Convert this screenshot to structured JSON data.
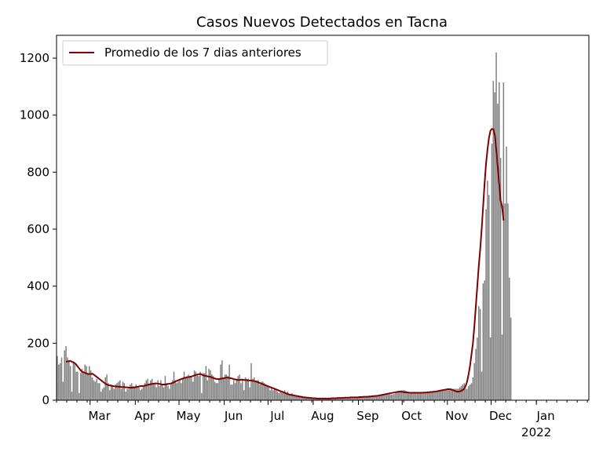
{
  "chart_data": {
    "type": "bar",
    "title": "Casos Nuevos Detectados en Tacna",
    "xlabel": "",
    "ylabel": "",
    "ylim": [
      0,
      1280
    ],
    "yticks": [
      0,
      200,
      400,
      600,
      800,
      1000,
      1200
    ],
    "x_start": "2021-02-06",
    "x_end": "2022-02-06",
    "xticks": [
      {
        "date": "2021-03-01",
        "label": "Mar"
      },
      {
        "date": "2021-04-01",
        "label": "Apr"
      },
      {
        "date": "2021-05-01",
        "label": "May"
      },
      {
        "date": "2021-06-01",
        "label": "Jun"
      },
      {
        "date": "2021-07-01",
        "label": "Jul"
      },
      {
        "date": "2021-08-01",
        "label": "Aug"
      },
      {
        "date": "2021-09-01",
        "label": "Sep"
      },
      {
        "date": "2021-10-01",
        "label": "Oct"
      },
      {
        "date": "2021-11-01",
        "label": "Nov"
      },
      {
        "date": "2021-12-01",
        "label": "Dec"
      },
      {
        "date": "2022-01-01",
        "label": "Jan",
        "sublabel": "2022"
      }
    ],
    "bar_color": "#808080",
    "line_color": "#800000",
    "grid": false,
    "legend_position": "top-left",
    "series": [
      {
        "type": "bar",
        "values": [
          155,
          125,
          130,
          150,
          65,
          175,
          190,
          150,
          140,
          120,
          30,
          135,
          130,
          100,
          100,
          25,
          95,
          110,
          100,
          125,
          120,
          90,
          120,
          105,
          80,
          70,
          65,
          75,
          60,
          60,
          30,
          40,
          45,
          80,
          90,
          60,
          35,
          55,
          50,
          40,
          55,
          60,
          65,
          70,
          40,
          65,
          60,
          30,
          40,
          40,
          55,
          60,
          50,
          45,
          55,
          50,
          45,
          35,
          40,
          50,
          60,
          70,
          75,
          55,
          70,
          75,
          60,
          60,
          45,
          70,
          50,
          70,
          55,
          45,
          85,
          60,
          50,
          40,
          60,
          70,
          100,
          70,
          60,
          65,
          70,
          60,
          75,
          100,
          80,
          85,
          90,
          85,
          80,
          65,
          105,
          100,
          90,
          85,
          100,
          25,
          95,
          95,
          120,
          70,
          110,
          105,
          90,
          85,
          65,
          60,
          60,
          75,
          125,
          140,
          80,
          90,
          90,
          85,
          125,
          55,
          55,
          70,
          60,
          75,
          85,
          90,
          60,
          75,
          35,
          80,
          75,
          75,
          45,
          130,
          75,
          80,
          65,
          70,
          70,
          55,
          65,
          65,
          60,
          55,
          50,
          45,
          35,
          45,
          35,
          40,
          35,
          30,
          25,
          30,
          30,
          25,
          35,
          25,
          30,
          20,
          20,
          25,
          20,
          20,
          15,
          15,
          15,
          15,
          15,
          12,
          10,
          10,
          10,
          10,
          10,
          8,
          8,
          6,
          5,
          5,
          5,
          5,
          5,
          5,
          5,
          6,
          6,
          6,
          7,
          7,
          7,
          7,
          7,
          8,
          8,
          8,
          8,
          8,
          9,
          9,
          9,
          10,
          10,
          10,
          10,
          10,
          10,
          10,
          10,
          12,
          12,
          12,
          12,
          12,
          12,
          13,
          14,
          14,
          15,
          15,
          16,
          17,
          18,
          19,
          20,
          20,
          20,
          20,
          20,
          20,
          20,
          22,
          25,
          28,
          30,
          33,
          35,
          35,
          35,
          33,
          30,
          28,
          28,
          27,
          26,
          26,
          26,
          26,
          26,
          26,
          26,
          26,
          26,
          26,
          27,
          27,
          28,
          28,
          29,
          29,
          30,
          31,
          32,
          33,
          34,
          35,
          37,
          38,
          39,
          40,
          40,
          40,
          40,
          40,
          40,
          40,
          45,
          50,
          55,
          60,
          40,
          40,
          50,
          55,
          60,
          80,
          130,
          180,
          220,
          330,
          320,
          100,
          410,
          420,
          670,
          770,
          720,
          220,
          900,
          1120,
          1080,
          1220,
          1040,
          1115,
          850,
          230,
          1115,
          690,
          890,
          690,
          430,
          290
        ]
      },
      {
        "type": "line",
        "name": "Promedio de los 7 dias anteriores",
        "values": [
          null,
          null,
          null,
          null,
          null,
          null,
          135,
          136,
          137,
          138,
          135,
          133,
          130,
          125,
          118,
          112,
          105,
          100,
          98,
          96,
          94,
          92,
          92,
          92,
          93,
          90,
          86,
          82,
          78,
          74,
          70,
          66,
          62,
          58,
          55,
          53,
          52,
          51,
          50,
          49,
          48,
          48,
          47,
          47,
          46,
          46,
          46,
          45,
          45,
          44,
          44,
          44,
          44,
          45,
          46,
          47,
          48,
          50,
          50,
          50,
          51,
          52,
          54,
          55,
          56,
          57,
          58,
          59,
          59,
          58,
          57,
          56,
          55,
          55,
          55,
          56,
          57,
          58,
          59,
          60,
          63,
          66,
          68,
          70,
          72,
          74,
          76,
          78,
          79,
          80,
          81,
          82,
          83,
          85,
          87,
          89,
          90,
          91,
          92,
          90,
          88,
          86,
          85,
          84,
          83,
          82,
          80,
          78,
          76,
          75,
          74,
          74,
          75,
          76,
          77,
          78,
          79,
          79,
          78,
          77,
          76,
          74,
          73,
          72,
          71,
          71,
          72,
          72,
          71,
          71,
          70,
          70,
          69,
          69,
          68,
          67,
          66,
          64,
          62,
          60,
          58,
          56,
          54,
          52,
          50,
          48,
          46,
          44,
          42,
          40,
          38,
          36,
          34,
          32,
          30,
          28,
          26,
          24,
          22,
          20,
          19,
          18,
          17,
          16,
          15,
          14,
          13,
          12,
          11,
          10,
          10,
          9,
          9,
          8,
          8,
          7,
          7,
          7,
          6,
          6,
          6,
          6,
          6,
          6,
          6,
          6,
          6,
          6,
          7,
          7,
          7,
          7,
          8,
          8,
          8,
          8,
          8,
          9,
          9,
          9,
          9,
          10,
          10,
          10,
          10,
          10,
          10,
          11,
          11,
          11,
          12,
          12,
          12,
          12,
          13,
          13,
          14,
          14,
          15,
          15,
          16,
          17,
          18,
          19,
          20,
          21,
          22,
          23,
          24,
          25,
          26,
          27,
          28,
          29,
          30,
          30,
          30,
          29,
          28,
          28,
          27,
          27,
          26,
          26,
          26,
          26,
          26,
          26,
          26,
          26,
          26,
          27,
          27,
          27,
          28,
          28,
          29,
          29,
          30,
          30,
          31,
          32,
          33,
          34,
          35,
          36,
          37,
          38,
          39,
          39,
          38,
          36,
          34,
          32,
          30,
          30,
          31,
          33,
          36,
          40,
          50,
          65,
          90,
          120,
          160,
          200,
          260,
          330,
          400,
          470,
          530,
          600,
          680,
          760,
          830,
          880,
          920,
          945,
          952,
          950,
          930,
          880,
          820,
          760,
          700,
          680,
          630
        ]
      }
    ]
  }
}
